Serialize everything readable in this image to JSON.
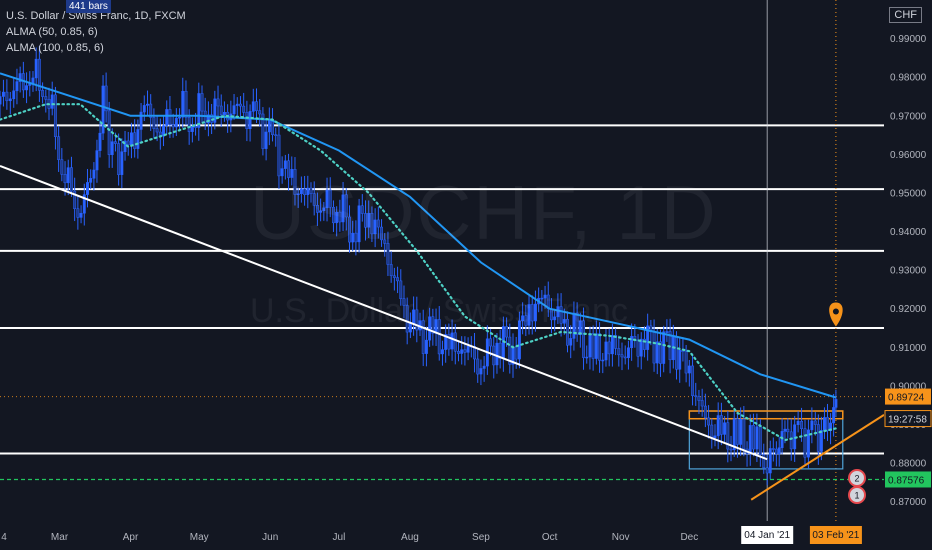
{
  "header": {
    "title": "U.S. Dollar / Swiss Franc, 1D, FXCM",
    "indicator_1": "ALMA (50, 0.85, 6)",
    "indicator_2": "ALMA (100, 0.85, 6)",
    "bars_badge": "441 bars",
    "currency": "CHF"
  },
  "watermark": {
    "symbol": "USDCHF, 1D",
    "name": "U.S. Dollar / Swiss Franc"
  },
  "colors": {
    "background": "#131722",
    "up_candle": "#2962ff",
    "down_candle": "#2962ff",
    "alma_50": "#4dd0c4",
    "alma_100": "#2196f3",
    "horizontal_levels": "#ffffff",
    "trendline": "#ffffff",
    "support_trendline": "#f7931a",
    "price_marker": "#f7931a",
    "green_level": "#22c55e",
    "range_box": "#4fa3d8"
  },
  "chart_data": {
    "type": "candlestick",
    "y_axis_ticks": [
      "0.87000",
      "0.88000",
      "0.89000",
      "0.90000",
      "0.91000",
      "0.92000",
      "0.93000",
      "0.94000",
      "0.95000",
      "0.96000",
      "0.97000",
      "0.98000",
      "0.99000"
    ],
    "x_axis_ticks": [
      "4",
      "Mar",
      "Apr",
      "May",
      "Jun",
      "Jul",
      "Aug",
      "Sep",
      "Oct",
      "Nov",
      "Dec",
      "Jan",
      "Feb"
    ],
    "x_range_dates": [
      "2020-02-04",
      "2021-02-24"
    ],
    "y_range": [
      0.865,
      1.0
    ],
    "close_series": [
      [
        "2020-02-04",
        0.973
      ],
      [
        "2020-02-10",
        0.977
      ],
      [
        "2020-02-17",
        0.981
      ],
      [
        "2020-02-24",
        0.978
      ],
      [
        "2020-03-02",
        0.958
      ],
      [
        "2020-03-09",
        0.945
      ],
      [
        "2020-03-16",
        0.955
      ],
      [
        "2020-03-20",
        0.975
      ],
      [
        "2020-03-24",
        0.96
      ],
      [
        "2020-03-31",
        0.96
      ],
      [
        "2020-04-07",
        0.972
      ],
      [
        "2020-04-14",
        0.966
      ],
      [
        "2020-04-21",
        0.972
      ],
      [
        "2020-04-28",
        0.97
      ],
      [
        "2020-05-05",
        0.972
      ],
      [
        "2020-05-12",
        0.971
      ],
      [
        "2020-05-19",
        0.971
      ],
      [
        "2020-05-26",
        0.969
      ],
      [
        "2020-06-02",
        0.963
      ],
      [
        "2020-06-09",
        0.953
      ],
      [
        "2020-06-16",
        0.95
      ],
      [
        "2020-06-23",
        0.947
      ],
      [
        "2020-06-30",
        0.947
      ],
      [
        "2020-07-07",
        0.941
      ],
      [
        "2020-07-14",
        0.945
      ],
      [
        "2020-07-21",
        0.936
      ],
      [
        "2020-07-28",
        0.921
      ],
      [
        "2020-08-04",
        0.913
      ],
      [
        "2020-08-11",
        0.913
      ],
      [
        "2020-08-18",
        0.91
      ],
      [
        "2020-08-25",
        0.91
      ],
      [
        "2020-09-01",
        0.906
      ],
      [
        "2020-09-08",
        0.912
      ],
      [
        "2020-09-15",
        0.91
      ],
      [
        "2020-09-22",
        0.92
      ],
      [
        "2020-09-29",
        0.922
      ],
      [
        "2020-10-06",
        0.915
      ],
      [
        "2020-10-13",
        0.913
      ],
      [
        "2020-10-20",
        0.908
      ],
      [
        "2020-10-27",
        0.91
      ],
      [
        "2020-11-03",
        0.909
      ],
      [
        "2020-11-10",
        0.913
      ],
      [
        "2020-11-17",
        0.911
      ],
      [
        "2020-11-24",
        0.911
      ],
      [
        "2020-12-01",
        0.903
      ],
      [
        "2020-12-08",
        0.89
      ],
      [
        "2020-12-15",
        0.887
      ],
      [
        "2020-12-22",
        0.886
      ],
      [
        "2020-12-29",
        0.886
      ],
      [
        "2021-01-04",
        0.88
      ],
      [
        "2021-01-08",
        0.884
      ],
      [
        "2021-01-13",
        0.888
      ],
      [
        "2021-01-19",
        0.887
      ],
      [
        "2021-01-25",
        0.887
      ],
      [
        "2021-01-29",
        0.889
      ],
      [
        "2021-02-02",
        0.893
      ],
      [
        "2021-02-03",
        0.8972
      ]
    ],
    "alma_50_series": [
      [
        "2020-02-04",
        0.969
      ],
      [
        "2020-02-24",
        0.973
      ],
      [
        "2020-03-10",
        0.973
      ],
      [
        "2020-03-31",
        0.962
      ],
      [
        "2020-04-21",
        0.966
      ],
      [
        "2020-05-12",
        0.97
      ],
      [
        "2020-06-02",
        0.969
      ],
      [
        "2020-06-23",
        0.961
      ],
      [
        "2020-07-14",
        0.95
      ],
      [
        "2020-08-04",
        0.935
      ],
      [
        "2020-08-25",
        0.918
      ],
      [
        "2020-09-15",
        0.91
      ],
      [
        "2020-10-06",
        0.914
      ],
      [
        "2020-10-27",
        0.913
      ],
      [
        "2020-11-17",
        0.911
      ],
      [
        "2020-12-01",
        0.909
      ],
      [
        "2020-12-22",
        0.893
      ],
      [
        "2021-01-12",
        0.886
      ],
      [
        "2021-02-03",
        0.889
      ]
    ],
    "alma_100_series": [
      [
        "2020-02-04",
        0.981
      ],
      [
        "2020-03-01",
        0.976
      ],
      [
        "2020-04-01",
        0.97
      ],
      [
        "2020-05-01",
        0.97
      ],
      [
        "2020-06-01",
        0.969
      ],
      [
        "2020-07-01",
        0.961
      ],
      [
        "2020-08-01",
        0.949
      ],
      [
        "2020-09-01",
        0.932
      ],
      [
        "2020-10-01",
        0.92
      ],
      [
        "2020-11-01",
        0.916
      ],
      [
        "2020-12-01",
        0.912
      ],
      [
        "2021-01-01",
        0.903
      ],
      [
        "2021-02-03",
        0.897
      ]
    ],
    "horizontal_levels": [
      0.9675,
      0.951,
      0.935,
      0.915,
      0.8825
    ],
    "green_dashed_level": 0.87576,
    "dotted_level": 0.89724,
    "trendline": {
      "from": [
        "2020-02-04",
        0.957
      ],
      "to": [
        "2021-01-04",
        0.881
      ]
    },
    "support_trendline": {
      "from": [
        "2020-12-28",
        0.8705
      ],
      "to": [
        "2021-02-24",
        0.8925
      ]
    },
    "range_box": {
      "x": [
        "2020-12-01",
        "2021-02-06"
      ],
      "y": [
        0.8785,
        0.8935
      ]
    },
    "orange_box": {
      "x": [
        "2020-12-01",
        "2021-02-06"
      ],
      "y": [
        0.8915,
        0.8935
      ]
    },
    "crosshair_date": "2021-01-04",
    "marker_date": "2021-02-03",
    "price_labels": {
      "last": "0.89724",
      "countdown": "19:27:58",
      "green": "0.87576"
    },
    "date_labels": {
      "crosshair": "04 Jan '21",
      "marker": "03 Feb '21"
    },
    "event_badges": [
      "2",
      "1"
    ]
  }
}
